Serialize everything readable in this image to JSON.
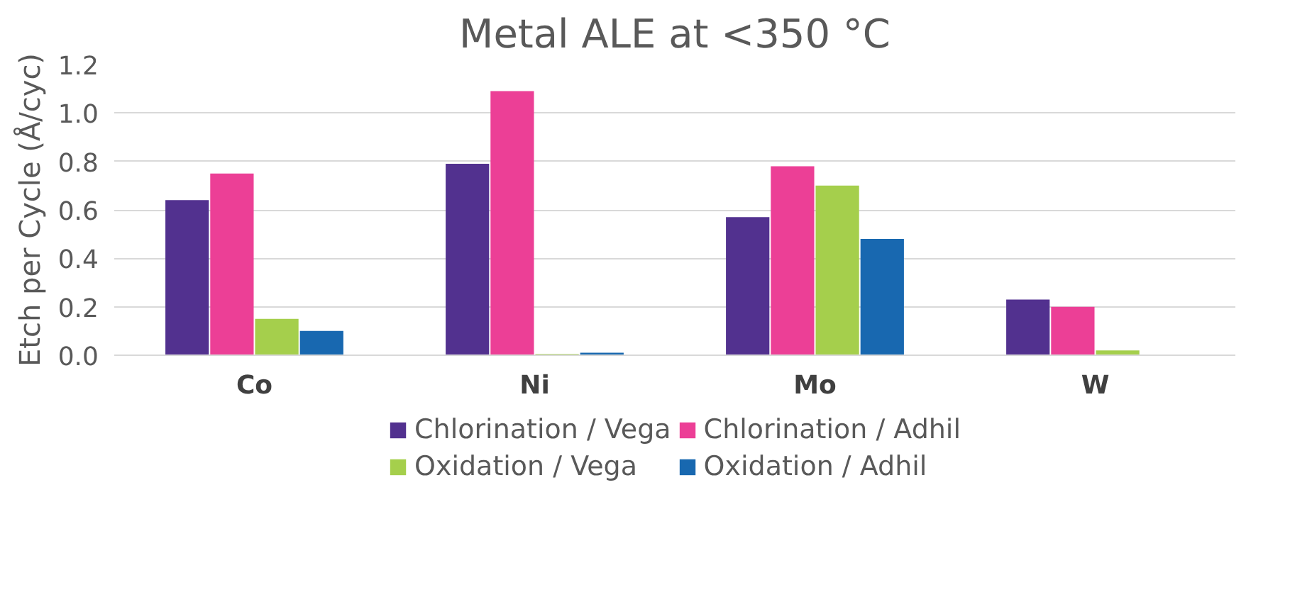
{
  "chart_data": {
    "type": "bar",
    "title": "Metal ALE at <350 °C",
    "ylabel": "Etch per Cycle (Å/cyc)",
    "categories": [
      "Co",
      "Ni",
      "Mo",
      "W"
    ],
    "series": [
      {
        "name": "Chlorination / Vega",
        "color": "#52318f",
        "values": [
          0.64,
          0.79,
          0.57,
          0.23
        ]
      },
      {
        "name": "Chlorination / Adhil",
        "color": "#ec3f96",
        "values": [
          0.75,
          1.09,
          0.78,
          0.2
        ]
      },
      {
        "name": "Oxidation / Vega",
        "color": "#a5cf4c",
        "values": [
          0.15,
          0.005,
          0.7,
          0.02
        ]
      },
      {
        "name": "Oxidation / Adhil",
        "color": "#1868b0",
        "values": [
          0.1,
          0.01,
          0.48,
          0
        ]
      }
    ],
    "ylim": [
      0,
      1.2
    ],
    "yticks": [
      {
        "value": 0,
        "label": "0.0"
      },
      {
        "value": 0.2,
        "label": "0.2"
      },
      {
        "value": 0.4,
        "label": "0.4"
      },
      {
        "value": 0.6,
        "label": "0.6"
      },
      {
        "value": 0.8,
        "label": "0.8"
      },
      {
        "value": 1.0,
        "label": "1.0"
      },
      {
        "value": 1.2,
        "label": "1.2"
      }
    ],
    "grid": "y",
    "legend": "bottom"
  }
}
